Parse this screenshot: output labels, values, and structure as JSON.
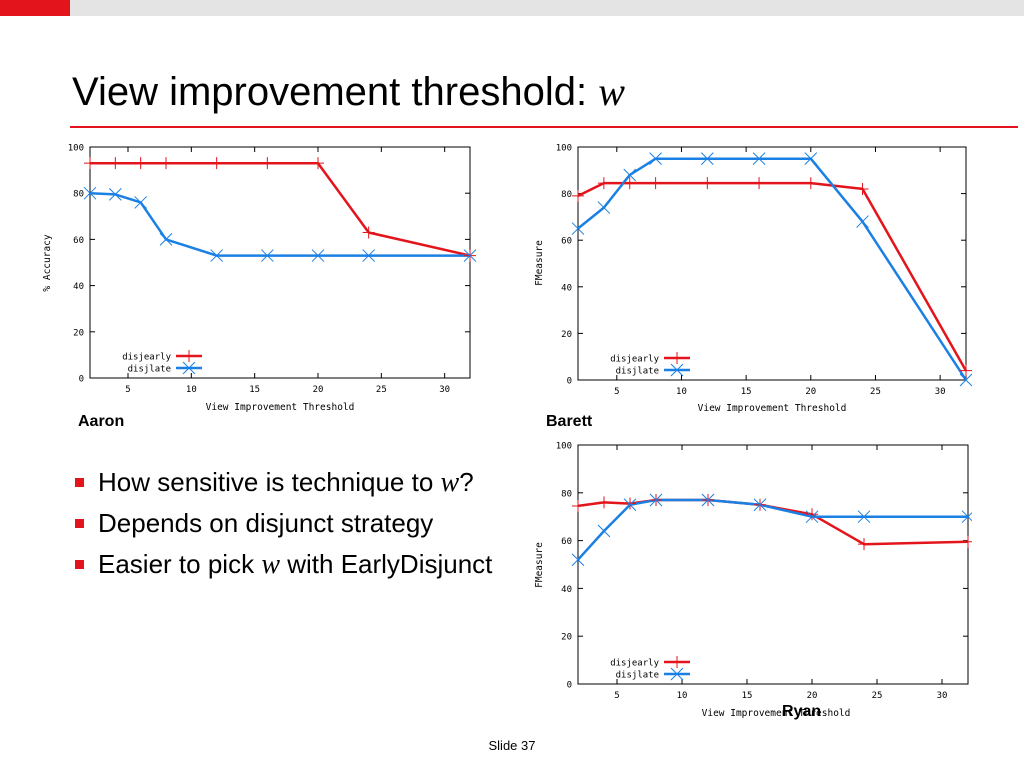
{
  "slide": {
    "title": "View improvement threshold:",
    "title_var": "w",
    "footer": "Slide 37",
    "accent_color": "#e3141b"
  },
  "bullets": {
    "b1_text": "How sensitive is technique to",
    "b1_var": "w",
    "b1_tail": "?",
    "b2_text": "Depends on disjunct strategy",
    "b3_pre": "Easier to pick",
    "b3_var": "w",
    "b3_post": "with EarlyDisjunct"
  },
  "captions": {
    "aaron": "Aaron",
    "barett": "Barett",
    "ryan": "Ryan"
  },
  "chart_data": [
    {
      "type": "line",
      "xlabel": "View Improvement Threshold",
      "ylabel": "% Accuracy",
      "xticks": [
        5,
        10,
        15,
        20,
        25,
        30
      ],
      "yticks": [
        0,
        20,
        40,
        60,
        80,
        100
      ],
      "xlim": [
        2,
        32
      ],
      "ylim": [
        0,
        100
      ],
      "legend": "bottom-left",
      "series": [
        {
          "name": "disjearly",
          "color": "#e3141b",
          "marker": "plus",
          "x": [
            2,
            4,
            6,
            8,
            12,
            16,
            20,
            24,
            32
          ],
          "y": [
            93,
            93,
            93,
            93,
            93,
            93,
            93,
            63,
            53
          ]
        },
        {
          "name": "disjlate",
          "color": "#1b80e4",
          "marker": "x",
          "x": [
            2,
            4,
            6,
            8,
            12,
            16,
            20,
            24,
            32
          ],
          "y": [
            80,
            79.5,
            76,
            60,
            53,
            53,
            53,
            53,
            53
          ]
        }
      ]
    },
    {
      "type": "line",
      "xlabel": "View Improvement Threshold",
      "ylabel": "FMeasure",
      "xticks": [
        5,
        10,
        15,
        20,
        25,
        30
      ],
      "yticks": [
        0,
        20,
        40,
        60,
        80,
        100
      ],
      "xlim": [
        2,
        32
      ],
      "ylim": [
        0,
        100
      ],
      "legend": "bottom-left",
      "series": [
        {
          "name": "disjearly",
          "color": "#e3141b",
          "marker": "plus",
          "x": [
            2,
            4,
            6,
            8,
            12,
            16,
            20,
            24,
            32
          ],
          "y": [
            79,
            84.5,
            84.5,
            84.5,
            84.5,
            84.5,
            84.5,
            82,
            4
          ]
        },
        {
          "name": "disjlate",
          "color": "#1b80e4",
          "marker": "x",
          "x": [
            2,
            4,
            6,
            8,
            12,
            16,
            20,
            24,
            32
          ],
          "y": [
            65,
            74,
            88,
            95,
            95,
            95,
            95,
            68,
            0
          ]
        }
      ]
    },
    {
      "type": "line",
      "xlabel": "View Improvement Threshold",
      "ylabel": "FMeasure",
      "xticks": [
        5,
        10,
        15,
        20,
        25,
        30
      ],
      "yticks": [
        0,
        20,
        40,
        60,
        80,
        100
      ],
      "xlim": [
        2,
        32
      ],
      "ylim": [
        0,
        100
      ],
      "legend": "bottom-left",
      "series": [
        {
          "name": "disjearly",
          "color": "#e3141b",
          "marker": "plus",
          "x": [
            2,
            4,
            6,
            8,
            12,
            16,
            20,
            24,
            32
          ],
          "y": [
            74.5,
            76,
            75.5,
            77,
            77,
            75,
            71,
            58.5,
            59.5
          ]
        },
        {
          "name": "disjlate",
          "color": "#1b80e4",
          "marker": "x",
          "x": [
            2,
            4,
            6,
            8,
            12,
            16,
            20,
            24,
            32
          ],
          "y": [
            52,
            64,
            75,
            77,
            77,
            75,
            70,
            70,
            70
          ]
        }
      ]
    }
  ]
}
